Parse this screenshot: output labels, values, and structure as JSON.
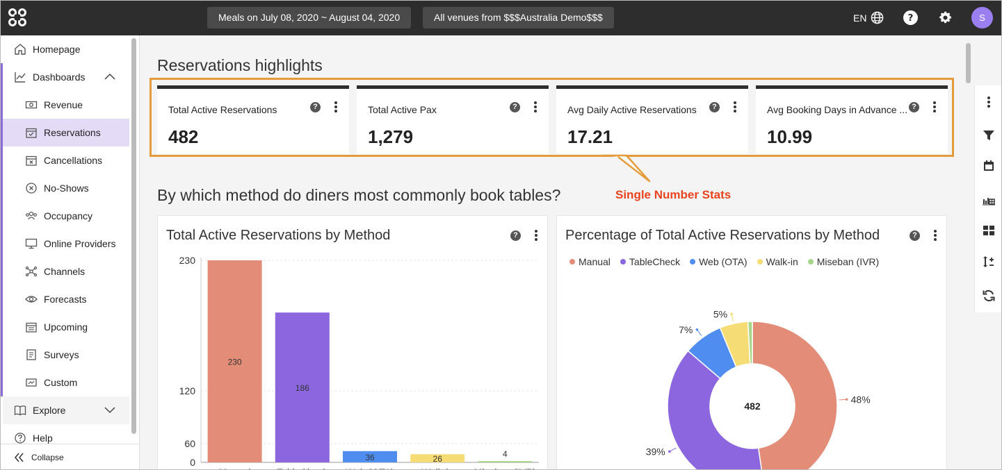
{
  "topbar": {
    "date_filter": "Meals on July 08, 2020 ~ August 04, 2020",
    "venue_filter": "All venues from $$$Australia Demo$$$",
    "language": "EN",
    "avatar_initial": "S"
  },
  "sidebar": {
    "items": [
      {
        "label": "Homepage",
        "icon": "home-icon"
      },
      {
        "label": "Dashboards",
        "icon": "chart-line-icon"
      },
      {
        "label": "Revenue",
        "icon": "money-icon"
      },
      {
        "label": "Reservations",
        "icon": "calendar-check-icon"
      },
      {
        "label": "Cancellations",
        "icon": "calendar-x-icon"
      },
      {
        "label": "No-Shows",
        "icon": "circle-x-icon"
      },
      {
        "label": "Occupancy",
        "icon": "users-icon"
      },
      {
        "label": "Online Providers",
        "icon": "monitor-icon"
      },
      {
        "label": "Channels",
        "icon": "network-icon"
      },
      {
        "label": "Forecasts",
        "icon": "eye-icon"
      },
      {
        "label": "Upcoming",
        "icon": "calendar-icon"
      },
      {
        "label": "Surveys",
        "icon": "document-icon"
      },
      {
        "label": "Custom",
        "icon": "custom-icon"
      },
      {
        "label": "Explore",
        "icon": "book-icon"
      },
      {
        "label": "Help",
        "icon": "help-circle-icon"
      }
    ],
    "collapse_label": "Collapse"
  },
  "main": {
    "highlights_title": "Reservations highlights",
    "stats": [
      {
        "label": "Total Active Reservations",
        "value": "482"
      },
      {
        "label": "Total Active Pax",
        "value": "1,279"
      },
      {
        "label": "Avg Daily Active Reservations",
        "value": "17.21"
      },
      {
        "label": "Avg Booking Days in Advance ...",
        "value": "10.99"
      }
    ],
    "callout": "Single Number Stats",
    "section_title": "By which method do diners most commonly book tables?",
    "bar_panel_title": "Total Active Reservations by Method",
    "pie_panel_title": "Percentage of Total Active Reservations by Method",
    "help_glyph": "?"
  },
  "colors": {
    "manual": "#e38c78",
    "tablecheck": "#8c66de",
    "web": "#4f8ef0",
    "walkin": "#f6dc74",
    "miseban": "#a6d68a",
    "accent": "#8a6bd8",
    "callout": "#e8431e"
  },
  "chart_data": [
    {
      "type": "bar",
      "categories": [
        "Manual",
        "TableCheck",
        "Web (OTA)",
        "Walk-in",
        "Miseban (IVR)"
      ],
      "values": [
        230,
        186,
        36,
        26,
        4
      ],
      "value_labels": [
        "230",
        "186",
        "36",
        "26",
        "4"
      ],
      "yticks": [
        "0",
        "60",
        "120",
        "230"
      ],
      "ytick_values": [
        0,
        60,
        120,
        230
      ],
      "ylim": [
        0,
        230
      ]
    },
    {
      "type": "pie",
      "donut": true,
      "center_label": "482",
      "categories": [
        "Manual",
        "TableCheck",
        "Web (OTA)",
        "Walk-in",
        "Miseban (IVR)"
      ],
      "values": [
        230,
        186,
        36,
        26,
        4
      ],
      "percent_labels": [
        "48%",
        "39%",
        "7%",
        "5%",
        ""
      ],
      "legend": "top"
    }
  ]
}
